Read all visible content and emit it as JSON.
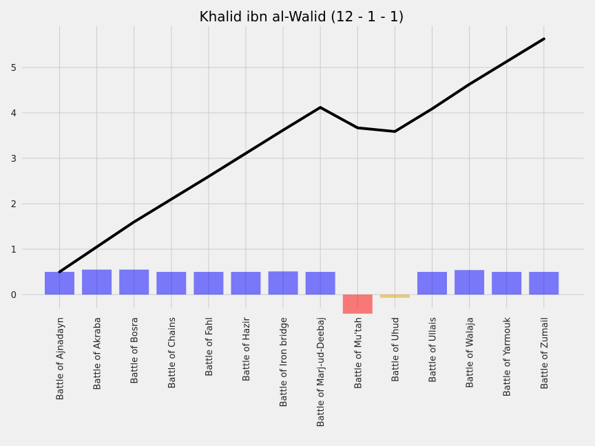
{
  "chart_data": {
    "type": "bar",
    "title": "Khalid ibn al-Walid (12 - 1 - 1)",
    "xlabel": "",
    "ylabel": "",
    "categories": [
      "Battle of Ajnadayn",
      "Battle of Akraba",
      "Battle of Bosra",
      "Battle of Chains",
      "Battle of Fahl",
      "Battle of Hazir",
      "Battle of Iron bridge",
      "Battle of Marj-ud-Deebaj",
      "Battle of Mu'tah",
      "Battle of Uhud",
      "Battle of Ullais",
      "Battle of Walaja",
      "Battle of Yarmouk",
      "Battle of Zumail"
    ],
    "series": [
      {
        "type": "bar",
        "values": [
          0.5,
          0.55,
          0.55,
          0.5,
          0.5,
          0.5,
          0.51,
          0.5,
          -0.42,
          -0.07,
          0.5,
          0.54,
          0.5,
          0.5
        ],
        "colors": [
          "#0000ff",
          "#0000ff",
          "#0000ff",
          "#0000ff",
          "#0000ff",
          "#0000ff",
          "#0000ff",
          "#0000ff",
          "#ff0000",
          "#e69f00",
          "#0000ff",
          "#0000ff",
          "#0000ff",
          "#0000ff"
        ],
        "opacity": 0.5
      },
      {
        "type": "line",
        "values": [
          0.5,
          1.05,
          1.6,
          2.1,
          2.6,
          3.11,
          3.62,
          4.12,
          3.67,
          3.59,
          4.09,
          4.63,
          5.13,
          5.63
        ],
        "color": "#000000"
      }
    ],
    "yticks": [
      0,
      1,
      2,
      3,
      4,
      5
    ],
    "ylim": [
      -0.6,
      5.9
    ],
    "grid": true,
    "legend": "none",
    "background": "#f0f0f0"
  }
}
